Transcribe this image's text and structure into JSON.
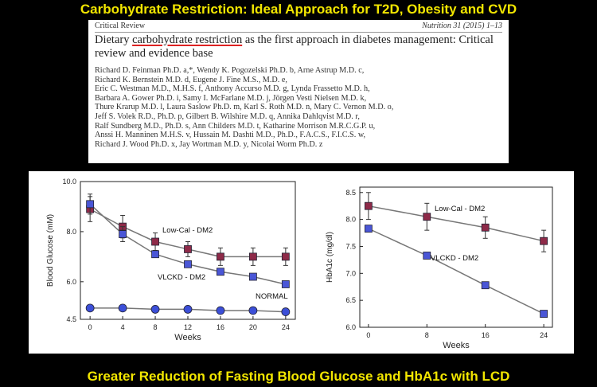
{
  "slide": {
    "title": "Carbohydrate Restriction: Ideal Approach for T2D, Obesity and CVD",
    "caption": "Greater Reduction of Fasting Blood Glucose and HbA1c with LCD"
  },
  "paper": {
    "section": "Critical Review",
    "journal": "Nutrition 31 (2015) 1–13",
    "title_pre": "Dietary ",
    "title_highlight": "carbohydrate restriction",
    "title_post": " as the first approach in diabetes management: Critical review and evidence base",
    "author_lines": [
      "Richard D. Feinman Ph.D. a,*, Wendy K. Pogozelski Ph.D. b, Arne Astrup M.D. c,",
      "Richard K. Bernstein M.D. d, Eugene J. Fine M.S., M.D. e,",
      "Eric C. Westman M.D., M.H.S. f, Anthony Accurso M.D. g, Lynda Frassetto M.D. h,",
      "Barbara A. Gower Ph.D. i, Samy I. McFarlane M.D. j, Jörgen Vesti Nielsen M.D. k,",
      "Thure Krarup M.D. l, Laura Saslow Ph.D. m, Karl S. Roth M.D. n, Mary C. Vernon M.D. o,",
      "Jeff S. Volek R.D., Ph.D. p, Gilbert B. Wilshire M.D. q, Annika Dahlqvist M.D. r,",
      "Ralf Sundberg M.D., Ph.D. s, Ann Childers M.D. t, Katharine Morrison M.R.C.G.P. u,",
      "Anssi H. Manninen M.H.S. v, Hussain M. Dashti M.D., Ph.D., F.A.C.S., F.I.C.S. w,",
      "Richard J. Wood Ph.D. x, Jay Wortman M.D. y, Nicolai Worm Ph.D. z"
    ]
  },
  "chart_data": [
    {
      "type": "line",
      "xlabel": "Weeks",
      "ylabel": "Blood Glucose (mM)",
      "x": [
        0,
        4,
        8,
        12,
        16,
        20,
        24
      ],
      "xticks": [
        "0",
        "4",
        "8",
        "12",
        "16",
        "20",
        "24"
      ],
      "yticks": [
        "4.5",
        "6.0",
        "8.0",
        "10.0"
      ],
      "ylim": [
        4.5,
        10.0
      ],
      "series": [
        {
          "name": "Low-Cal - DM2",
          "values": [
            8.9,
            8.2,
            7.6,
            7.3,
            7.0,
            7.0,
            7.0
          ],
          "err": [
            0.5,
            0.45,
            0.35,
            0.3,
            0.35,
            0.35,
            0.35
          ],
          "marker": "square",
          "color": "#8e2a48"
        },
        {
          "name": "VLCKD - DM2",
          "values": [
            9.1,
            7.9,
            7.1,
            6.7,
            6.4,
            6.2,
            5.9
          ],
          "err": [
            0.4,
            0.3,
            0.0,
            0.0,
            0.0,
            0.0,
            0.0
          ],
          "marker": "square",
          "color": "#4a56d6"
        },
        {
          "name": "NORMAL",
          "values": [
            4.95,
            4.95,
            4.9,
            4.9,
            4.85,
            4.85,
            4.8
          ],
          "err": [
            0.1,
            0.1,
            0.1,
            0.1,
            0.1,
            0.1,
            0.1
          ],
          "marker": "circle",
          "color": "#3c4fd8"
        }
      ]
    },
    {
      "type": "line",
      "xlabel": "Weeks",
      "ylabel": "HbA1c (mg/dl)",
      "x": [
        0,
        8,
        16,
        24
      ],
      "xticks": [
        "0",
        "8",
        "16",
        "24"
      ],
      "yticks": [
        "6.0",
        "6.5",
        "7.0",
        "7.5",
        "8.0",
        "8.5"
      ],
      "ylim": [
        6.0,
        8.6
      ],
      "series": [
        {
          "name": "Low-Cal - DM2",
          "values": [
            8.25,
            8.05,
            7.85,
            7.6
          ],
          "err": [
            0.25,
            0.25,
            0.2,
            0.2
          ],
          "marker": "square",
          "color": "#8e2a48"
        },
        {
          "name": "VLCKD - DM2",
          "values": [
            7.83,
            7.33,
            6.78,
            6.25
          ],
          "err": [
            0.0,
            0.0,
            0.0,
            0.0
          ],
          "marker": "square",
          "color": "#4a56d6"
        }
      ]
    }
  ],
  "colors": {
    "title_yellow": "#f2e600",
    "highlight_red": "#d22222",
    "background": "#000000"
  }
}
